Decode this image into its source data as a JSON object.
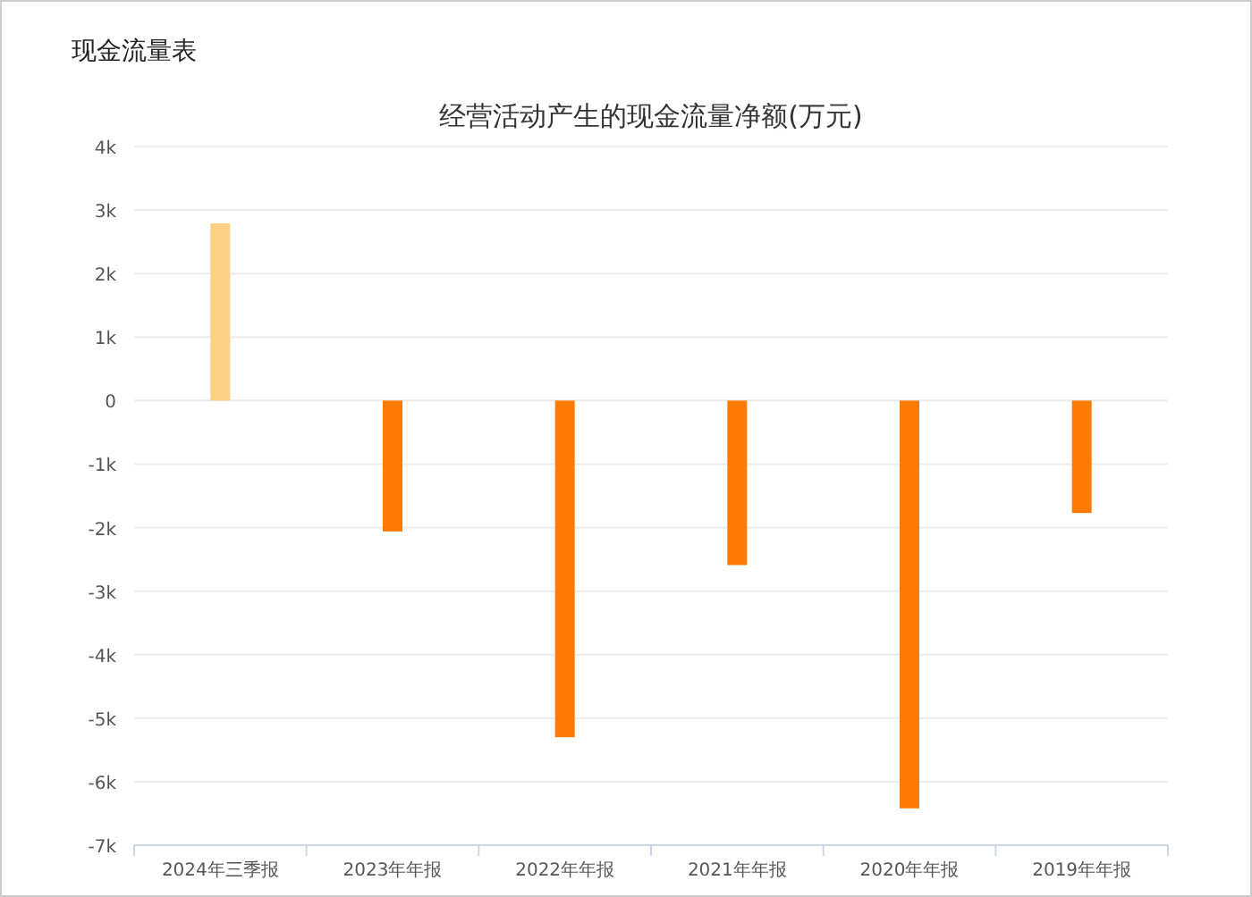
{
  "chart_data": {
    "type": "bar",
    "title": "现金流量表",
    "subtitle": "经营活动产生的现金流量净额(万元)",
    "categories": [
      "2024年三季报",
      "2023年年报",
      "2022年年报",
      "2021年年报",
      "2020年年报",
      "2019年年报"
    ],
    "values": [
      2790,
      -2060,
      -5300,
      -2590,
      -6420,
      -1770
    ],
    "colors": [
      "#fdd085",
      "#ff7a06",
      "#ff7a06",
      "#ff7a06",
      "#ff7a06",
      "#ff7a06"
    ],
    "ylim": [
      -7000,
      4000
    ],
    "yticks": [
      {
        "value": -7000,
        "label": "-7k"
      },
      {
        "value": -6000,
        "label": "-6k"
      },
      {
        "value": -5000,
        "label": "-5k"
      },
      {
        "value": -4000,
        "label": "-4k"
      },
      {
        "value": -3000,
        "label": "-3k"
      },
      {
        "value": -2000,
        "label": "-2k"
      },
      {
        "value": -1000,
        "label": "-1k"
      },
      0,
      {
        "value": 1000,
        "label": "1k"
      },
      {
        "value": 2000,
        "label": "2k"
      },
      {
        "value": 3000,
        "label": "3k"
      },
      {
        "value": 4000,
        "label": "4k"
      }
    ],
    "grid": "y"
  }
}
